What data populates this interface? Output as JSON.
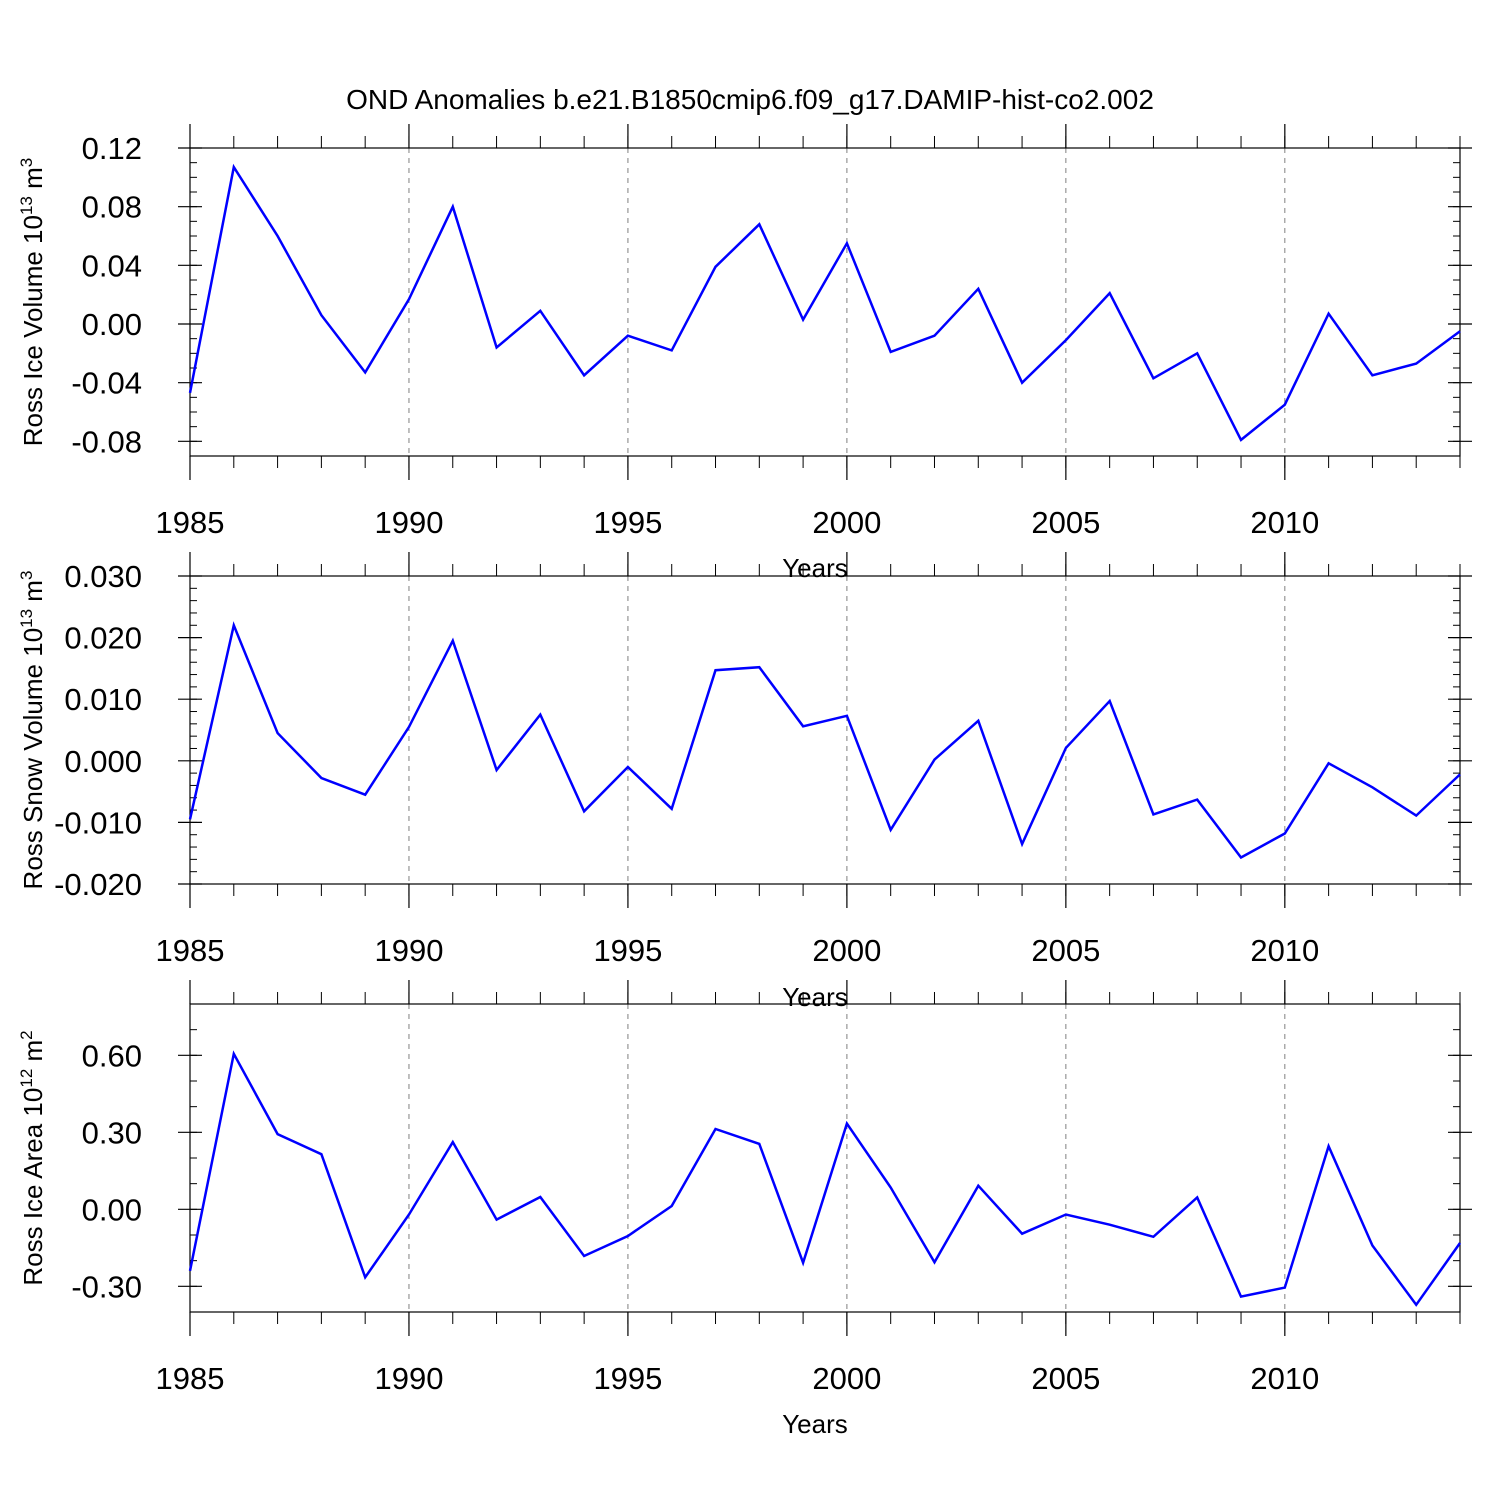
{
  "figure": {
    "title": "OND Anomalies b.e21.B1850cmip6.f09_g17.DAMIP-hist-co2.002"
  },
  "style": {
    "line_color": "#0000ff",
    "axis_color": "#000000",
    "grid_color": "#808080"
  },
  "chart_data": [
    {
      "type": "line",
      "ylabel_main": "Ross Ice Volume 10",
      "ylabel_exp": "13",
      "ylabel_unit": " m",
      "ylabel_unit_exp": "3",
      "xlabel": "Years",
      "xlim": [
        1985,
        2014
      ],
      "ylim": [
        -0.09,
        0.12
      ],
      "yticks": [
        -0.08,
        -0.04,
        0.0,
        0.04,
        0.08,
        0.12
      ],
      "ytick_labels": [
        "-0.08",
        "-0.04",
        "0.00",
        "0.04",
        "0.08",
        "0.12"
      ],
      "y_minor_step": 0.01,
      "xticks": [
        1985,
        1990,
        1995,
        2000,
        2005,
        2010
      ],
      "xtick_labels": [
        "1985",
        "1990",
        "1995",
        "2000",
        "2005",
        "2010"
      ],
      "x": [
        1985,
        1986,
        1987,
        1988,
        1989,
        1990,
        1991,
        1992,
        1993,
        1994,
        1995,
        1996,
        1997,
        1998,
        1999,
        2000,
        2001,
        2002,
        2003,
        2004,
        2005,
        2006,
        2007,
        2008,
        2009,
        2010,
        2011,
        2012,
        2013,
        2014
      ],
      "values": [
        -0.047,
        0.107,
        0.06,
        0.006,
        -0.033,
        0.017,
        0.08,
        -0.016,
        0.009,
        -0.035,
        -0.008,
        -0.018,
        0.039,
        0.068,
        0.003,
        0.055,
        -0.019,
        -0.008,
        0.024,
        -0.04,
        -0.011,
        0.021,
        -0.037,
        -0.02,
        -0.079,
        -0.055,
        0.007,
        -0.035,
        -0.027,
        -0.005
      ]
    },
    {
      "type": "line",
      "ylabel_main": "Ross Snow Volume 10",
      "ylabel_exp": "13",
      "ylabel_unit": " m",
      "ylabel_unit_exp": "3",
      "xlabel": "Years",
      "xlim": [
        1985,
        2014
      ],
      "ylim": [
        -0.02,
        0.03
      ],
      "yticks": [
        -0.02,
        -0.01,
        0.0,
        0.01,
        0.02,
        0.03
      ],
      "ytick_labels": [
        "-0.020",
        "-0.010",
        "0.000",
        "0.010",
        "0.020",
        "0.030"
      ],
      "y_minor_step": 0.002,
      "xticks": [
        1985,
        1990,
        1995,
        2000,
        2005,
        2010
      ],
      "xtick_labels": [
        "1985",
        "1990",
        "1995",
        "2000",
        "2005",
        "2010"
      ],
      "x": [
        1985,
        1986,
        1987,
        1988,
        1989,
        1990,
        1991,
        1992,
        1993,
        1994,
        1995,
        1996,
        1997,
        1998,
        1999,
        2000,
        2001,
        2002,
        2003,
        2004,
        2005,
        2006,
        2007,
        2008,
        2009,
        2010,
        2011,
        2012,
        2013,
        2014
      ],
      "values": [
        -0.0095,
        0.022,
        0.0045,
        -0.0028,
        -0.0055,
        0.0055,
        0.0195,
        -0.0015,
        0.0075,
        -0.0082,
        -0.001,
        -0.0078,
        0.0147,
        0.0152,
        0.0056,
        0.0073,
        -0.0112,
        0.0002,
        0.0065,
        -0.0135,
        0.0021,
        0.0097,
        -0.0087,
        -0.0063,
        -0.0157,
        -0.0118,
        -0.0004,
        -0.0043,
        -0.0089,
        -0.0022
      ]
    },
    {
      "type": "line",
      "ylabel_main": "Ross Ice Area 10",
      "ylabel_exp": "12",
      "ylabel_unit": " m",
      "ylabel_unit_exp": "2",
      "xlabel": "Years",
      "xlim": [
        1985,
        2014
      ],
      "ylim": [
        -0.4,
        0.8
      ],
      "yticks": [
        -0.3,
        0.0,
        0.3,
        0.6
      ],
      "ytick_labels": [
        "-0.30",
        "0.00",
        "0.30",
        "0.60"
      ],
      "y_minor_step": 0.1,
      "xticks": [
        1985,
        1990,
        1995,
        2000,
        2005,
        2010
      ],
      "xtick_labels": [
        "1985",
        "1990",
        "1995",
        "2000",
        "2005",
        "2010"
      ],
      "x": [
        1985,
        1986,
        1987,
        1988,
        1989,
        1990,
        1991,
        1992,
        1993,
        1994,
        1995,
        1996,
        1997,
        1998,
        1999,
        2000,
        2001,
        2002,
        2003,
        2004,
        2005,
        2006,
        2007,
        2008,
        2009,
        2010,
        2011,
        2012,
        2013,
        2014
      ],
      "values": [
        -0.24,
        0.606,
        0.293,
        0.215,
        -0.265,
        -0.02,
        0.262,
        -0.04,
        0.048,
        -0.182,
        -0.104,
        0.013,
        0.313,
        0.255,
        -0.208,
        0.334,
        0.085,
        -0.206,
        0.092,
        -0.095,
        -0.02,
        -0.06,
        -0.107,
        0.046,
        -0.34,
        -0.305,
        0.246,
        -0.141,
        -0.372,
        -0.131
      ]
    }
  ]
}
